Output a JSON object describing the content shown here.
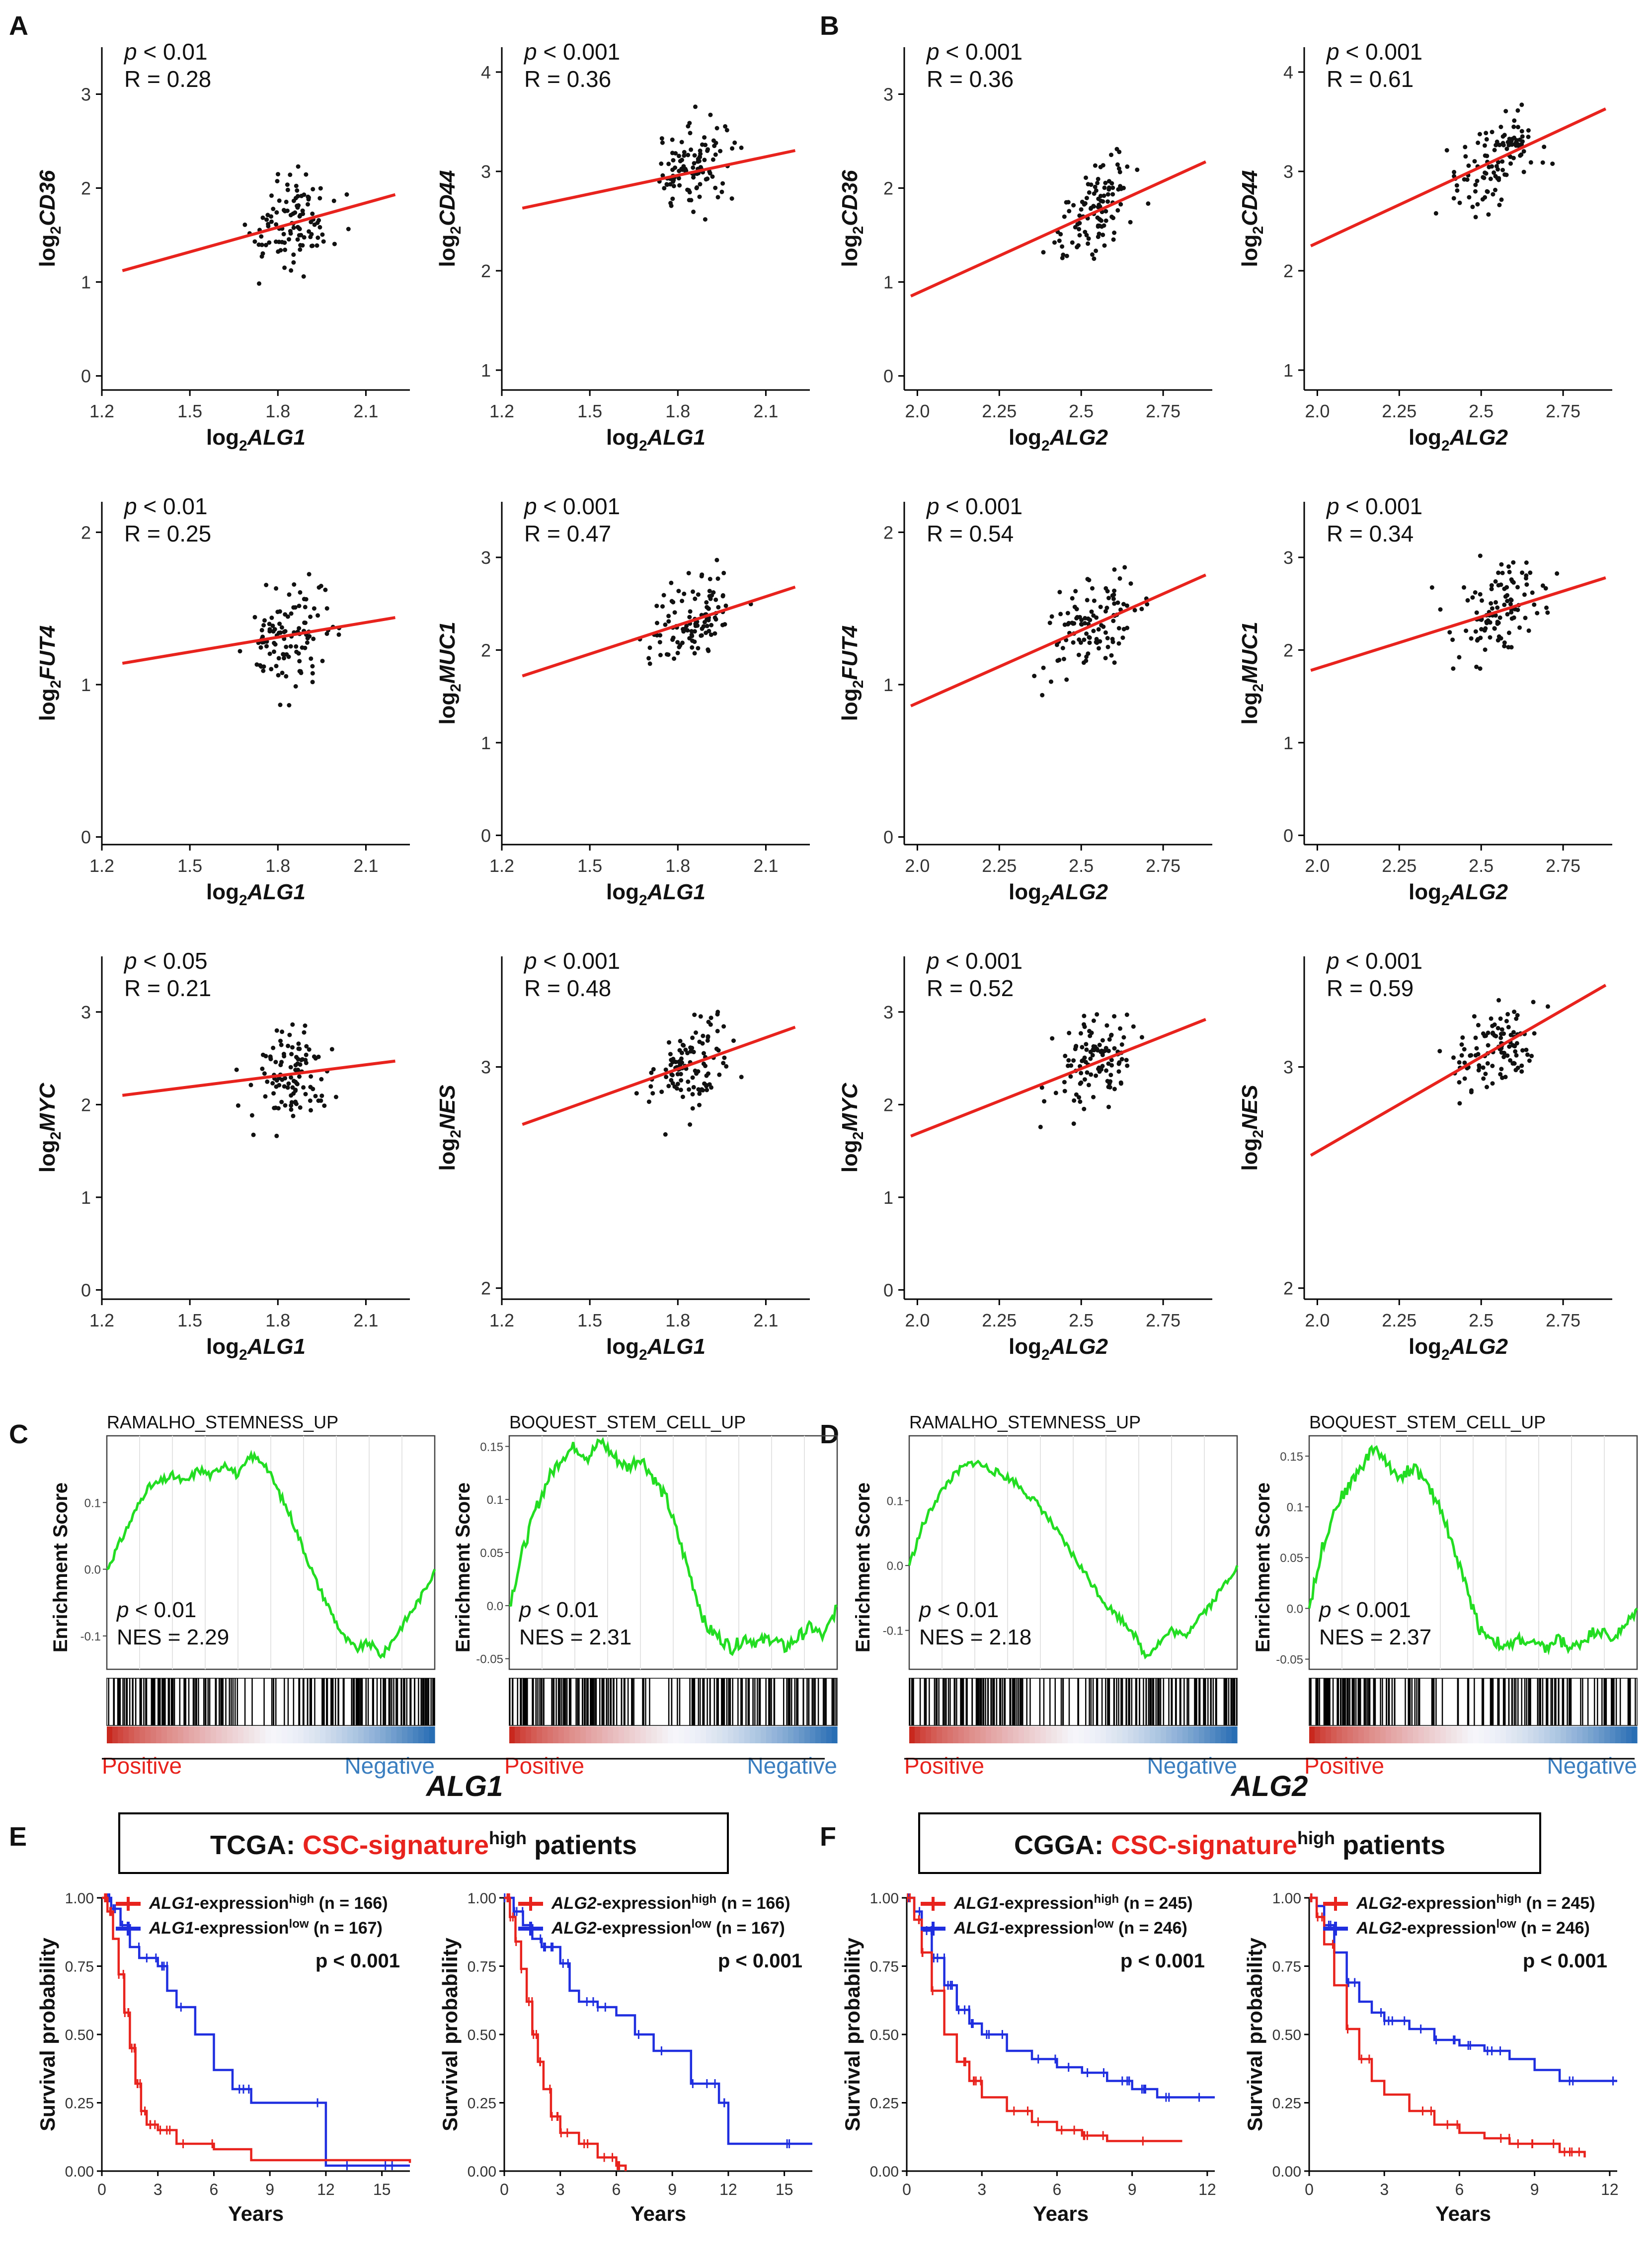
{
  "figure": {
    "panel_labels": [
      "A",
      "B",
      "C",
      "D",
      "E",
      "F"
    ],
    "gsea_group_labels": [
      "ALG1",
      "ALG2"
    ]
  },
  "colors": {
    "fit_line": "#e8231e",
    "points": "#111111",
    "gsea_curve": "#22dd22",
    "positive": "#e8231e",
    "negative": "#3a7ec0",
    "km_high": "#e8231e",
    "km_low": "#1f2fe0",
    "csc_text": "#e8231e"
  },
  "chart_data": [
    {
      "type": "scatter",
      "panel": "A",
      "gene_x": "ALG1",
      "gene_y": "CD36",
      "p_text": "< 0.01",
      "r_text": "R = 0.28",
      "xlim": [
        1.2,
        2.25
      ],
      "ylim": [
        -0.15,
        3.5
      ],
      "xticks": [
        1.2,
        1.5,
        1.8,
        2.1
      ],
      "yticks": [
        0,
        1,
        2,
        3
      ],
      "fit": [
        [
          1.27,
          1.12
        ],
        [
          2.2,
          1.93
        ]
      ],
      "r": 0.28,
      "seed": 11
    },
    {
      "type": "scatter",
      "panel": "A",
      "gene_x": "ALG1",
      "gene_y": "CD44",
      "p_text": "< 0.001",
      "r_text": "R = 0.36",
      "xlim": [
        1.2,
        2.25
      ],
      "ylim": [
        0.8,
        4.25
      ],
      "xticks": [
        1.2,
        1.5,
        1.8,
        2.1
      ],
      "yticks": [
        1,
        2,
        3,
        4
      ],
      "fit": [
        [
          1.27,
          2.63
        ],
        [
          2.2,
          3.21
        ]
      ],
      "r": 0.36,
      "seed": 12
    },
    {
      "type": "scatter",
      "panel": "B",
      "gene_x": "ALG2",
      "gene_y": "CD36",
      "p_text": "< 0.001",
      "r_text": "R = 0.36",
      "xlim": [
        1.96,
        2.9
      ],
      "ylim": [
        -0.15,
        3.5
      ],
      "xticks": [
        2.0,
        2.25,
        2.5,
        2.75
      ],
      "yticks": [
        0,
        1,
        2,
        3
      ],
      "fit": [
        [
          1.98,
          0.85
        ],
        [
          2.88,
          2.28
        ]
      ],
      "r": 0.36,
      "seed": 13
    },
    {
      "type": "scatter",
      "panel": "B",
      "gene_x": "ALG2",
      "gene_y": "CD44",
      "p_text": "< 0.001",
      "r_text": "R = 0.61",
      "xlim": [
        1.96,
        2.9
      ],
      "ylim": [
        0.8,
        4.25
      ],
      "xticks": [
        2.0,
        2.25,
        2.5,
        2.75
      ],
      "yticks": [
        1,
        2,
        3,
        4
      ],
      "fit": [
        [
          1.98,
          2.25
        ],
        [
          2.88,
          3.63
        ]
      ],
      "r": 0.61,
      "seed": 14
    },
    {
      "type": "scatter",
      "panel": "A",
      "gene_x": "ALG1",
      "gene_y": "FUT4",
      "p_text": "< 0.01",
      "r_text": "R = 0.25",
      "xlim": [
        1.2,
        2.25
      ],
      "ylim": [
        -0.05,
        2.2
      ],
      "xticks": [
        1.2,
        1.5,
        1.8,
        2.1
      ],
      "yticks": [
        0,
        1,
        2
      ],
      "fit": [
        [
          1.27,
          1.14
        ],
        [
          2.2,
          1.44
        ]
      ],
      "r": 0.25,
      "seed": 15
    },
    {
      "type": "scatter",
      "panel": "A",
      "gene_x": "ALG1",
      "gene_y": "MUC1",
      "p_text": "< 0.001",
      "r_text": "R = 0.47",
      "xlim": [
        1.2,
        2.25
      ],
      "ylim": [
        -0.1,
        3.6
      ],
      "xticks": [
        1.2,
        1.5,
        1.8,
        2.1
      ],
      "yticks": [
        0,
        1,
        2,
        3
      ],
      "fit": [
        [
          1.27,
          1.72
        ],
        [
          2.2,
          2.68
        ]
      ],
      "r": 0.47,
      "seed": 16
    },
    {
      "type": "scatter",
      "panel": "B",
      "gene_x": "ALG2",
      "gene_y": "FUT4",
      "p_text": "< 0.001",
      "r_text": "R = 0.54",
      "xlim": [
        1.96,
        2.9
      ],
      "ylim": [
        -0.05,
        2.2
      ],
      "xticks": [
        2.0,
        2.25,
        2.5,
        2.75
      ],
      "yticks": [
        0,
        1,
        2
      ],
      "fit": [
        [
          1.98,
          0.86
        ],
        [
          2.88,
          1.72
        ]
      ],
      "r": 0.54,
      "seed": 17
    },
    {
      "type": "scatter",
      "panel": "B",
      "gene_x": "ALG2",
      "gene_y": "MUC1",
      "p_text": "< 0.001",
      "r_text": "R = 0.34",
      "xlim": [
        1.96,
        2.9
      ],
      "ylim": [
        -0.1,
        3.6
      ],
      "xticks": [
        2.0,
        2.25,
        2.5,
        2.75
      ],
      "yticks": [
        0,
        1,
        2,
        3
      ],
      "fit": [
        [
          1.98,
          1.78
        ],
        [
          2.88,
          2.78
        ]
      ],
      "r": 0.34,
      "seed": 18
    },
    {
      "type": "scatter",
      "panel": "A",
      "gene_x": "ALG1",
      "gene_y": "MYC",
      "p_text": "< 0.05",
      "r_text": "R = 0.21",
      "xlim": [
        1.2,
        2.25
      ],
      "ylim": [
        -0.1,
        3.6
      ],
      "xticks": [
        1.2,
        1.5,
        1.8,
        2.1
      ],
      "yticks": [
        0,
        1,
        2,
        3
      ],
      "fit": [
        [
          1.27,
          2.1
        ],
        [
          2.2,
          2.47
        ]
      ],
      "r": 0.21,
      "seed": 19
    },
    {
      "type": "scatter",
      "panel": "A",
      "gene_x": "ALG1",
      "gene_y": "NES",
      "p_text": "< 0.001",
      "r_text": "R = 0.48",
      "xlim": [
        1.2,
        2.25
      ],
      "ylim": [
        1.95,
        3.5
      ],
      "xticks": [
        1.2,
        1.5,
        1.8,
        2.1
      ],
      "yticks": [
        2,
        3
      ],
      "fit": [
        [
          1.27,
          2.74
        ],
        [
          2.2,
          3.18
        ]
      ],
      "r": 0.48,
      "seed": 20
    },
    {
      "type": "scatter",
      "panel": "B",
      "gene_x": "ALG2",
      "gene_y": "MYC",
      "p_text": "< 0.001",
      "r_text": "R = 0.52",
      "xlim": [
        1.96,
        2.9
      ],
      "ylim": [
        -0.1,
        3.6
      ],
      "xticks": [
        2.0,
        2.25,
        2.5,
        2.75
      ],
      "yticks": [
        0,
        1,
        2,
        3
      ],
      "fit": [
        [
          1.98,
          1.66
        ],
        [
          2.88,
          2.92
        ]
      ],
      "r": 0.52,
      "seed": 21
    },
    {
      "type": "scatter",
      "panel": "B",
      "gene_x": "ALG2",
      "gene_y": "NES",
      "p_text": "< 0.001",
      "r_text": "R = 0.59",
      "xlim": [
        1.96,
        2.9
      ],
      "ylim": [
        1.95,
        3.5
      ],
      "xticks": [
        2.0,
        2.25,
        2.5,
        2.75
      ],
      "yticks": [
        2,
        3
      ],
      "fit": [
        [
          1.98,
          2.6
        ],
        [
          2.88,
          3.37
        ]
      ],
      "r": 0.59,
      "seed": 22
    },
    {
      "type": "gsea",
      "panel": "C",
      "gene": "ALG1",
      "title": "RAMALHO_STEMNESS_UP",
      "ylabel": "Enrichment Score",
      "ylim": [
        -0.15,
        0.2
      ],
      "yticks": [
        -0.1,
        0.0,
        0.1
      ],
      "p_text": "< 0.01",
      "nes_text": "NES = 2.29",
      "pos_label": "Positive",
      "neg_label": "Negative",
      "curve": [
        0,
        0.04,
        0.08,
        0.12,
        0.13,
        0.14,
        0.13,
        0.15,
        0.14,
        0.16,
        0.14,
        0.17,
        0.16,
        0.12,
        0.08,
        0.03,
        -0.02,
        -0.06,
        -0.1,
        -0.12,
        -0.11,
        -0.13,
        -0.1,
        -0.07,
        -0.04,
        0
      ],
      "hit_seed": 31
    },
    {
      "type": "gsea",
      "panel": "C",
      "gene": "ALG1",
      "title": "BOQUEST_STEM_CELL_UP",
      "ylabel": "Enrichment Score",
      "ylim": [
        -0.06,
        0.16
      ],
      "yticks": [
        -0.05,
        0.0,
        0.05,
        0.1,
        0.15
      ],
      "p_text": "< 0.01",
      "nes_text": "NES = 2.31",
      "pos_label": "Positive",
      "neg_label": "Negative",
      "curve": [
        0,
        0.05,
        0.09,
        0.12,
        0.14,
        0.15,
        0.14,
        0.155,
        0.14,
        0.13,
        0.14,
        0.12,
        0.1,
        0.06,
        0.02,
        -0.02,
        -0.03,
        -0.04,
        -0.03,
        -0.035,
        -0.03,
        -0.04,
        -0.03,
        -0.02,
        -0.03,
        0
      ],
      "hit_seed": 32
    },
    {
      "type": "gsea",
      "panel": "D",
      "gene": "ALG2",
      "title": "RAMALHO_STEMNESS_UP",
      "ylabel": "Enrichment Score",
      "ylim": [
        -0.16,
        0.2
      ],
      "yticks": [
        -0.1,
        0.0,
        0.1
      ],
      "p_text": "< 0.01",
      "nes_text": "NES = 2.18",
      "pos_label": "Positive",
      "neg_label": "Negative",
      "curve": [
        0,
        0.06,
        0.1,
        0.13,
        0.15,
        0.16,
        0.15,
        0.14,
        0.13,
        0.11,
        0.09,
        0.06,
        0.03,
        0,
        -0.03,
        -0.06,
        -0.08,
        -0.1,
        -0.14,
        -0.12,
        -0.1,
        -0.11,
        -0.08,
        -0.06,
        -0.03,
        0
      ],
      "hit_seed": 33
    },
    {
      "type": "gsea",
      "panel": "D",
      "gene": "ALG2",
      "title": "BOQUEST_STEM_CELL_UP",
      "ylabel": "Enrichment Score",
      "ylim": [
        -0.06,
        0.17
      ],
      "yticks": [
        -0.05,
        0.0,
        0.05,
        0.1,
        0.15
      ],
      "p_text": "< 0.001",
      "nes_text": "NES = 2.37",
      "pos_label": "Positive",
      "neg_label": "Negative",
      "curve": [
        0,
        0.06,
        0.1,
        0.12,
        0.14,
        0.16,
        0.14,
        0.13,
        0.14,
        0.12,
        0.1,
        0.06,
        0.02,
        -0.02,
        -0.03,
        -0.04,
        -0.03,
        -0.035,
        -0.04,
        -0.03,
        -0.04,
        -0.03,
        -0.02,
        -0.03,
        -0.02,
        0
      ],
      "hit_seed": 34
    },
    {
      "type": "km",
      "panel": "E",
      "dataset": "TCGA",
      "gene": "ALG1",
      "high_label": "-expression",
      "low_label": "-expression",
      "high_n": "(n = 166)",
      "low_n": "(n = 167)",
      "p_text": "p < 0.001",
      "xlabel": "Years",
      "ylabel": "Survival probability",
      "xlim": [
        0,
        16.5
      ],
      "xticks": [
        0,
        3,
        6,
        9,
        12,
        15
      ],
      "yticks": [
        0,
        0.25,
        0.5,
        0.75,
        1.0
      ],
      "high": [
        [
          0,
          1.0
        ],
        [
          0.3,
          0.95
        ],
        [
          0.6,
          0.85
        ],
        [
          0.9,
          0.72
        ],
        [
          1.2,
          0.58
        ],
        [
          1.5,
          0.45
        ],
        [
          1.8,
          0.32
        ],
        [
          2.1,
          0.22
        ],
        [
          2.4,
          0.17
        ],
        [
          3,
          0.15
        ],
        [
          4,
          0.1
        ],
        [
          6,
          0.08
        ],
        [
          8,
          0.04
        ],
        [
          16.5,
          0.03
        ]
      ],
      "low": [
        [
          0,
          1.0
        ],
        [
          0.5,
          0.96
        ],
        [
          1,
          0.9
        ],
        [
          1.5,
          0.82
        ],
        [
          2,
          0.78
        ],
        [
          3,
          0.75
        ],
        [
          3.5,
          0.66
        ],
        [
          4,
          0.6
        ],
        [
          5,
          0.5
        ],
        [
          6,
          0.37
        ],
        [
          7,
          0.3
        ],
        [
          8,
          0.25
        ],
        [
          11,
          0.25
        ],
        [
          12,
          0.02
        ],
        [
          16.5,
          0.02
        ]
      ]
    },
    {
      "type": "km",
      "panel": "E",
      "dataset": "TCGA",
      "gene": "ALG2",
      "high_label": "-expression",
      "low_label": "-expression",
      "high_n": "(n = 166)",
      "low_n": "(n = 167)",
      "p_text": "p < 0.001",
      "xlabel": "Years",
      "ylabel": "Survival probability",
      "xlim": [
        0,
        16.5
      ],
      "xticks": [
        0,
        3,
        6,
        9,
        12,
        15
      ],
      "yticks": [
        0,
        0.25,
        0.5,
        0.75,
        1.0
      ],
      "high": [
        [
          0,
          1.0
        ],
        [
          0.3,
          0.93
        ],
        [
          0.6,
          0.84
        ],
        [
          0.9,
          0.74
        ],
        [
          1.2,
          0.62
        ],
        [
          1.5,
          0.5
        ],
        [
          1.8,
          0.4
        ],
        [
          2.1,
          0.3
        ],
        [
          2.5,
          0.2
        ],
        [
          3,
          0.14
        ],
        [
          4,
          0.1
        ],
        [
          5,
          0.05
        ],
        [
          6,
          0.02
        ],
        [
          6.5,
          0
        ]
      ],
      "low": [
        [
          0,
          1.0
        ],
        [
          0.5,
          0.95
        ],
        [
          1,
          0.9
        ],
        [
          1.5,
          0.85
        ],
        [
          2,
          0.82
        ],
        [
          3,
          0.76
        ],
        [
          3.5,
          0.66
        ],
        [
          4,
          0.62
        ],
        [
          5,
          0.6
        ],
        [
          6,
          0.57
        ],
        [
          7,
          0.5
        ],
        [
          8,
          0.44
        ],
        [
          10,
          0.32
        ],
        [
          11.5,
          0.25
        ],
        [
          12,
          0.1
        ],
        [
          16.5,
          0.1
        ]
      ]
    },
    {
      "type": "km",
      "panel": "F",
      "dataset": "CGGA",
      "gene": "ALG1",
      "high_label": "-expression",
      "low_label": "-expression",
      "high_n": "(n = 245)",
      "low_n": "(n = 246)",
      "p_text": "p < 0.001",
      "xlabel": "Years",
      "ylabel": "Survival probability",
      "xlim": [
        0,
        12.3
      ],
      "xticks": [
        0,
        3,
        6,
        9,
        12
      ],
      "yticks": [
        0,
        0.25,
        0.5,
        0.75,
        1.0
      ],
      "high": [
        [
          0,
          1.0
        ],
        [
          0.3,
          0.92
        ],
        [
          0.6,
          0.8
        ],
        [
          1,
          0.66
        ],
        [
          1.5,
          0.5
        ],
        [
          2,
          0.4
        ],
        [
          2.5,
          0.33
        ],
        [
          3,
          0.27
        ],
        [
          4,
          0.22
        ],
        [
          5,
          0.18
        ],
        [
          6,
          0.15
        ],
        [
          7,
          0.13
        ],
        [
          8,
          0.11
        ],
        [
          11,
          0.11
        ]
      ],
      "low": [
        [
          0,
          1.0
        ],
        [
          0.3,
          0.95
        ],
        [
          0.6,
          0.88
        ],
        [
          1,
          0.78
        ],
        [
          1.5,
          0.68
        ],
        [
          2,
          0.59
        ],
        [
          2.5,
          0.54
        ],
        [
          3,
          0.5
        ],
        [
          4,
          0.44
        ],
        [
          5,
          0.41
        ],
        [
          6,
          0.38
        ],
        [
          7,
          0.36
        ],
        [
          8,
          0.33
        ],
        [
          9,
          0.3
        ],
        [
          10,
          0.27
        ],
        [
          12.3,
          0.27
        ]
      ]
    },
    {
      "type": "km",
      "panel": "F",
      "dataset": "CGGA",
      "gene": "ALG2",
      "high_label": "-expression",
      "low_label": "-expression",
      "high_n": "(n = 245)",
      "low_n": "(n = 246)",
      "p_text": "p < 0.001",
      "xlabel": "Years",
      "ylabel": "Survival probability",
      "xlim": [
        0,
        12.3
      ],
      "xticks": [
        0,
        3,
        6,
        9,
        12
      ],
      "yticks": [
        0,
        0.25,
        0.5,
        0.75,
        1.0
      ],
      "high": [
        [
          0,
          1.0
        ],
        [
          0.3,
          0.93
        ],
        [
          0.6,
          0.83
        ],
        [
          1,
          0.68
        ],
        [
          1.5,
          0.52
        ],
        [
          2,
          0.41
        ],
        [
          2.5,
          0.33
        ],
        [
          3,
          0.28
        ],
        [
          4,
          0.22
        ],
        [
          5,
          0.17
        ],
        [
          6,
          0.14
        ],
        [
          7,
          0.12
        ],
        [
          8,
          0.1
        ],
        [
          10,
          0.07
        ],
        [
          11,
          0.05
        ]
      ],
      "low": [
        [
          0,
          1.0
        ],
        [
          0.3,
          0.97
        ],
        [
          0.6,
          0.9
        ],
        [
          1,
          0.8
        ],
        [
          1.5,
          0.69
        ],
        [
          2,
          0.62
        ],
        [
          2.5,
          0.58
        ],
        [
          3,
          0.55
        ],
        [
          4,
          0.52
        ],
        [
          5,
          0.48
        ],
        [
          6,
          0.46
        ],
        [
          7,
          0.44
        ],
        [
          8,
          0.41
        ],
        [
          9,
          0.37
        ],
        [
          10,
          0.33
        ],
        [
          12.3,
          0.33
        ]
      ]
    }
  ],
  "km_headers": [
    {
      "panel": "E",
      "dataset": "TCGA:",
      "signature": "CSC-signature",
      "sup": "high",
      "suffix": "patients"
    },
    {
      "panel": "F",
      "dataset": "CGGA:",
      "signature": "CSC-signature",
      "sup": "high",
      "suffix": "patients"
    }
  ],
  "km_sup": {
    "high": "high",
    "low": "low"
  }
}
